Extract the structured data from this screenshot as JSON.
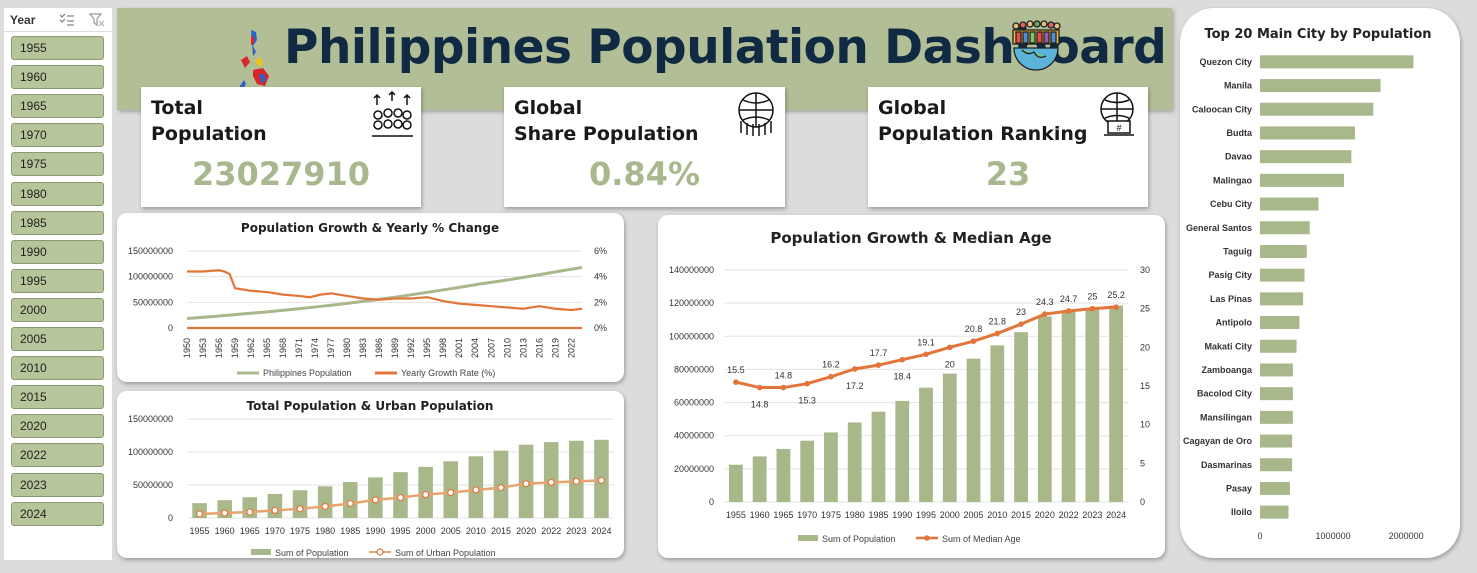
{
  "slicer": {
    "title": "Year",
    "items": [
      "1955",
      "1960",
      "1965",
      "1970",
      "1975",
      "1980",
      "1985",
      "1990",
      "1995",
      "2000",
      "2005",
      "2010",
      "2015",
      "2020",
      "2022",
      "2023",
      "2024"
    ]
  },
  "header": {
    "title": "Philippines Population Dashboard"
  },
  "kpis": [
    {
      "label_line1": "Total",
      "label_line2": "Population",
      "value": "23027910",
      "icon": "population-growth-icon"
    },
    {
      "label_line1": "Global",
      "label_line2": "Share Population",
      "value": "0.84%",
      "icon": "globe-people-icon"
    },
    {
      "label_line1": "Global",
      "label_line2": "Population Ranking",
      "value": "23",
      "icon": "globe-rank-icon"
    }
  ],
  "colors": {
    "green": "#a9b88a",
    "orange": "#e3743a",
    "banner": "#b2be95",
    "title": "#102a43"
  },
  "chart_data": [
    {
      "type": "line",
      "title": "Population Growth & Yearly % Change",
      "x_ticks": [
        "1950",
        "1953",
        "1956",
        "1959",
        "1962",
        "1965",
        "1968",
        "1971",
        "1974",
        "1977",
        "1980",
        "1983",
        "1986",
        "1989",
        "1992",
        "1995",
        "1998",
        "2001",
        "2004",
        "2007",
        "2010",
        "2013",
        "2016",
        "2019",
        "2022"
      ],
      "y_ticks_left": [
        "150000000",
        "100000000",
        "50000000",
        "0"
      ],
      "y_ticks_right": [
        "6%",
        "4%",
        "2%",
        "0%"
      ],
      "ylim_left": [
        0,
        150000000
      ],
      "ylim_right": [
        0,
        6
      ],
      "series": [
        {
          "name": "Philippines Population",
          "axis": "left",
          "color": "#a9b88a",
          "x": [
            1950,
            1955,
            1960,
            1965,
            1970,
            1975,
            1980,
            1985,
            1990,
            1995,
            2000,
            2005,
            2010,
            2015,
            2020,
            2024
          ],
          "values": [
            18600000,
            22500000,
            27000000,
            31500000,
            36500000,
            42000000,
            48000000,
            54500000,
            61500000,
            69500000,
            77500000,
            86000000,
            93500000,
            102000000,
            111000000,
            118000000
          ]
        },
        {
          "name": "Yearly Growth Rate (%)",
          "axis": "right",
          "color": "#e3743a",
          "x": [
            1950,
            1953,
            1956,
            1957,
            1958,
            1959,
            1962,
            1965,
            1968,
            1971,
            1973,
            1975,
            1977,
            1980,
            1983,
            1986,
            1989,
            1992,
            1995,
            1998,
            2001,
            2004,
            2007,
            2010,
            2013,
            2016,
            2019,
            2022,
            2024
          ],
          "values": [
            4.4,
            4.4,
            4.5,
            4.4,
            4.2,
            3.1,
            2.9,
            2.8,
            2.6,
            2.5,
            2.4,
            2.6,
            2.7,
            2.5,
            2.3,
            2.2,
            2.3,
            2.3,
            2.4,
            2.1,
            1.9,
            1.8,
            1.7,
            1.6,
            1.5,
            1.7,
            1.5,
            1.4,
            1.5
          ]
        },
        {
          "name": "",
          "axis": "right",
          "color": "#e3743a",
          "x": [
            1950,
            2024
          ],
          "values": [
            0,
            0
          ]
        }
      ],
      "legend": [
        "Philippines Population",
        "Yearly Growth Rate (%)"
      ],
      "legend_position": "bottom"
    },
    {
      "type": "bar",
      "title": "Total Population & Urban Population",
      "categories": [
        "1955",
        "1960",
        "1965",
        "1970",
        "1975",
        "1980",
        "1985",
        "1990",
        "1995",
        "2000",
        "2005",
        "2010",
        "2015",
        "2020",
        "2022",
        "2023",
        "2024"
      ],
      "y_ticks": [
        "150000000",
        "100000000",
        "50000000",
        "0"
      ],
      "ylim": [
        0,
        150000000
      ],
      "series": [
        {
          "name": "Sum of Population",
          "kind": "bar",
          "color": "#a9b88a",
          "values": [
            22500000,
            27000000,
            31500000,
            36500000,
            42000000,
            48000000,
            54500000,
            61500000,
            69500000,
            77500000,
            86000000,
            93500000,
            102000000,
            111000000,
            115000000,
            117000000,
            118500000
          ]
        },
        {
          "name": "Sum of Urban Population",
          "kind": "line",
          "color": "#e8a46e",
          "values": [
            6000000,
            7500000,
            9000000,
            11500000,
            14000000,
            17500000,
            22000000,
            27500000,
            31000000,
            35500000,
            38500000,
            42500000,
            46000000,
            52000000,
            54000000,
            55500000,
            57000000
          ]
        }
      ],
      "legend_position": "bottom"
    },
    {
      "type": "bar",
      "title": "Population Growth & Median Age",
      "categories": [
        "1955",
        "1960",
        "1965",
        "1970",
        "1975",
        "1980",
        "1985",
        "1990",
        "1995",
        "2000",
        "2005",
        "2010",
        "2015",
        "2020",
        "2022",
        "2023",
        "2024"
      ],
      "y_ticks_left": [
        "140000000",
        "120000000",
        "100000000",
        "80000000",
        "60000000",
        "40000000",
        "20000000",
        "0"
      ],
      "y_ticks_right": [
        "30",
        "25",
        "20",
        "15",
        "10",
        "5",
        "0"
      ],
      "ylim_left": [
        0,
        140000000
      ],
      "ylim_right": [
        0,
        30
      ],
      "series": [
        {
          "name": "Sum of Population",
          "kind": "bar",
          "color": "#a9b88a",
          "values": [
            22500000,
            27500000,
            32000000,
            37000000,
            42000000,
            48000000,
            54500000,
            61000000,
            69000000,
            77500000,
            86500000,
            94500000,
            102500000,
            112000000,
            115000000,
            117000000,
            118500000
          ]
        },
        {
          "name": "Sum of Median Age",
          "kind": "line",
          "color": "#e3743a",
          "values": [
            15.5,
            14.8,
            14.8,
            15.3,
            16.2,
            17.2,
            17.7,
            18.4,
            19.1,
            20,
            20.8,
            21.8,
            23,
            24.3,
            24.7,
            25,
            25.2
          ],
          "labels": [
            "15.5",
            "14.8",
            "14.8",
            "15.3",
            "16.2",
            "17.2",
            "17.7",
            "18.4",
            "19.1",
            "20",
            "20.8",
            "21.8",
            "23",
            "24.3",
            "24.7",
            "25",
            "25.2"
          ]
        }
      ],
      "legend_position": "bottom"
    },
    {
      "type": "bar",
      "orientation": "horizontal",
      "title": "Top 20 Main City by Population",
      "categories": [
        "Quezon City",
        "Manila",
        "Caloocan City",
        "Budta",
        "Davao",
        "Malingao",
        "Cebu City",
        "General Santos",
        "Taguig",
        "Pasig City",
        "Las Pinas",
        "Antipolo",
        "Makati City",
        "Zamboanga",
        "Bacolod City",
        "Mansilingan",
        "Cagayan de Oro",
        "Dasmarinas",
        "Pasay",
        "Iloilo"
      ],
      "values": [
        2100000,
        1650000,
        1550000,
        1300000,
        1250000,
        1150000,
        800000,
        680000,
        640000,
        610000,
        590000,
        540000,
        500000,
        450000,
        450000,
        450000,
        440000,
        440000,
        410000,
        390000
      ],
      "x_ticks": [
        "0",
        "1000000",
        "2000000"
      ],
      "xlim": [
        0,
        2600000
      ],
      "color": "#a9b88a"
    }
  ]
}
